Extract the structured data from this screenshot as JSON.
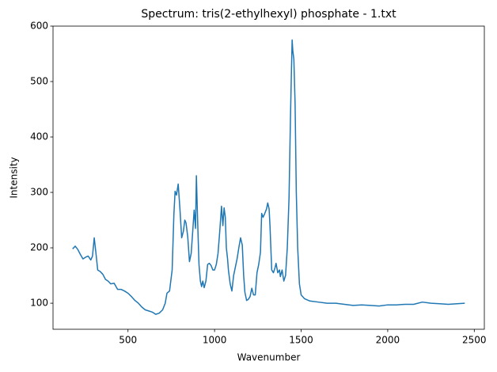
{
  "chart_data": {
    "type": "line",
    "title": "Spectrum: tris(2-ethylhexyl) phosphate - 1.txt",
    "x_label": "Wavenumber",
    "y_label": "Intensity",
    "color": "#1f77b4",
    "x": [
      180,
      195,
      210,
      225,
      240,
      255,
      270,
      285,
      295,
      305,
      315,
      325,
      340,
      355,
      370,
      385,
      400,
      420,
      440,
      460,
      480,
      500,
      520,
      540,
      560,
      580,
      600,
      620,
      640,
      660,
      680,
      700,
      715,
      725,
      740,
      755,
      765,
      772,
      780,
      790,
      800,
      810,
      820,
      828,
      835,
      845,
      855,
      865,
      875,
      882,
      890,
      895,
      902,
      910,
      918,
      925,
      932,
      940,
      950,
      960,
      970,
      980,
      990,
      1000,
      1010,
      1020,
      1030,
      1040,
      1048,
      1055,
      1062,
      1068,
      1075,
      1080,
      1090,
      1100,
      1110,
      1120,
      1130,
      1140,
      1150,
      1160,
      1168,
      1175,
      1185,
      1195,
      1205,
      1215,
      1225,
      1235,
      1245,
      1255,
      1265,
      1272,
      1280,
      1290,
      1300,
      1307,
      1315,
      1320,
      1330,
      1340,
      1350,
      1355,
      1365,
      1375,
      1380,
      1390,
      1400,
      1410,
      1420,
      1430,
      1438,
      1444,
      1448,
      1452,
      1458,
      1465,
      1472,
      1480,
      1490,
      1500,
      1520,
      1550,
      1600,
      1650,
      1700,
      1750,
      1800,
      1850,
      1900,
      1950,
      2000,
      2050,
      2100,
      2150,
      2200,
      2250,
      2300,
      2350,
      2400,
      2445
    ],
    "values": [
      198,
      203,
      197,
      188,
      180,
      183,
      185,
      178,
      185,
      218,
      190,
      160,
      157,
      152,
      143,
      140,
      135,
      136,
      125,
      125,
      122,
      118,
      112,
      105,
      100,
      93,
      88,
      86,
      84,
      80,
      82,
      88,
      100,
      118,
      122,
      160,
      260,
      302,
      295,
      315,
      270,
      218,
      230,
      250,
      245,
      220,
      175,
      190,
      235,
      268,
      235,
      330,
      250,
      170,
      140,
      130,
      140,
      128,
      140,
      170,
      172,
      168,
      160,
      160,
      170,
      190,
      230,
      275,
      240,
      272,
      255,
      200,
      180,
      160,
      135,
      122,
      150,
      165,
      180,
      200,
      218,
      205,
      150,
      120,
      105,
      107,
      112,
      127,
      115,
      115,
      155,
      170,
      192,
      262,
      255,
      262,
      270,
      281,
      270,
      240,
      160,
      155,
      165,
      172,
      155,
      160,
      148,
      160,
      140,
      150,
      200,
      290,
      430,
      520,
      575,
      555,
      540,
      460,
      300,
      200,
      135,
      115,
      108,
      104,
      102,
      100,
      100,
      98,
      96,
      97,
      96,
      95,
      97,
      97,
      98,
      98,
      102,
      100,
      99,
      98,
      99,
      100
    ],
    "xlim": [
      67,
      2558
    ],
    "ylim": [
      53,
      600
    ],
    "xticks": [
      500,
      1000,
      1500,
      2000,
      2500
    ],
    "yticks": [
      100,
      200,
      300,
      400,
      500,
      600
    ]
  }
}
